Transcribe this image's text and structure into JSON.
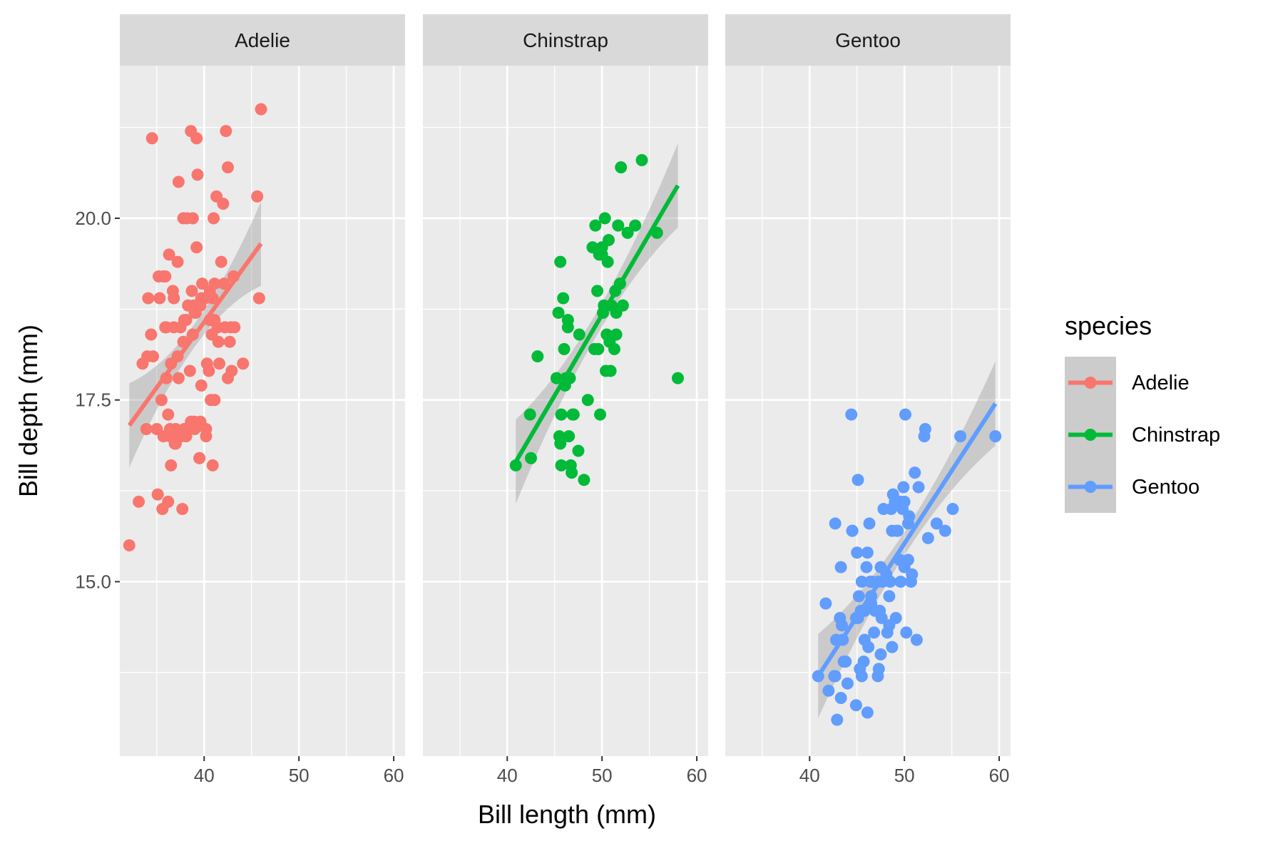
{
  "chart_data": {
    "type": "scatter",
    "facet_by": "species",
    "panels": [
      "Adelie",
      "Chinstrap",
      "Gentoo"
    ],
    "xlabel": "Bill length (mm)",
    "ylabel": "Bill depth (mm)",
    "xlim": [
      31.1,
      61.2
    ],
    "ylim": [
      12.6,
      22.1
    ],
    "xticks": [
      40,
      50,
      60
    ],
    "xtick_labels": [
      "40",
      "50",
      "60"
    ],
    "yticks": [
      15.0,
      17.5,
      20.0
    ],
    "ytick_labels": [
      "15.0",
      "17.5",
      "20.0"
    ],
    "grid": true,
    "smooth": "lm",
    "legend": {
      "title": "species",
      "position": "right",
      "entries": [
        "Adelie",
        "Chinstrap",
        "Gentoo"
      ]
    },
    "colors": {
      "Adelie": "#F8766D",
      "Chinstrap": "#00BA38",
      "Gentoo": "#619CFF"
    },
    "series": [
      {
        "name": "Adelie",
        "fit": {
          "x": [
            32.1,
            46.0
          ],
          "y": [
            17.15,
            19.65
          ]
        },
        "x": [
          32.1,
          33.1,
          33.5,
          33.9,
          34.0,
          34.4,
          34.5,
          34.6,
          35.0,
          35.1,
          35.2,
          35.3,
          35.5,
          35.6,
          35.7,
          35.9,
          36.0,
          36.0,
          36.2,
          36.2,
          36.3,
          36.4,
          36.5,
          36.5,
          36.6,
          36.7,
          36.8,
          36.9,
          37.0,
          37.0,
          37.2,
          37.3,
          37.3,
          37.5,
          37.6,
          37.7,
          37.8,
          37.8,
          37.9,
          37.9,
          38.1,
          38.1,
          38.2,
          38.3,
          38.5,
          38.6,
          38.6,
          38.7,
          38.8,
          38.8,
          38.9,
          39.0,
          39.0,
          39.1,
          39.2,
          39.2,
          39.3,
          39.5,
          39.6,
          39.6,
          39.7,
          39.7,
          39.8,
          40.1,
          40.2,
          40.2,
          40.3,
          40.5,
          40.6,
          40.6,
          40.7,
          40.8,
          40.9,
          40.9,
          41.0,
          41.1,
          41.1,
          41.3,
          41.4,
          41.5,
          41.6,
          41.8,
          42.0,
          42.1,
          42.2,
          42.3,
          42.5,
          42.7,
          42.8,
          42.9,
          43.1,
          43.2,
          44.1,
          45.6,
          45.8,
          46.0,
          34.1,
          35.7,
          36.4,
          37.2,
          39.5,
          40.6,
          36.8,
          38.8,
          39.0,
          41.1,
          42.5,
          35.9
        ],
        "y": [
          15.5,
          16.1,
          18.0,
          17.1,
          18.1,
          18.4,
          21.1,
          18.1,
          17.1,
          16.2,
          19.2,
          18.9,
          17.5,
          16.0,
          17.0,
          19.2,
          18.5,
          17.8,
          17.3,
          16.1,
          19.5,
          17.1,
          16.6,
          18.0,
          17.0,
          19.0,
          18.5,
          16.9,
          17.1,
          16.9,
          18.1,
          20.5,
          17.8,
          18.5,
          17.0,
          16.0,
          18.3,
          20.0,
          18.6,
          17.1,
          18.6,
          17.0,
          20.0,
          18.8,
          17.9,
          21.2,
          17.2,
          19.0,
          20.0,
          17.2,
          18.8,
          17.1,
          18.7,
          18.7,
          21.1,
          19.6,
          20.6,
          16.7,
          17.2,
          18.8,
          17.7,
          18.9,
          19.1,
          18.9,
          17.0,
          17.1,
          18.0,
          17.9,
          18.6,
          19.0,
          17.5,
          18.4,
          16.6,
          18.9,
          20.0,
          19.1,
          17.5,
          20.3,
          18.5,
          18.3,
          18.0,
          19.4,
          20.2,
          19.1,
          18.5,
          21.2,
          20.7,
          18.3,
          18.5,
          17.9,
          19.2,
          18.5,
          18.0,
          20.3,
          18.9,
          21.5,
          18.9,
          19.2,
          17.0,
          19.4,
          16.7,
          18.6,
          18.9,
          18.4,
          17.2,
          18.6,
          17.8,
          18.5
        ]
      },
      {
        "name": "Chinstrap",
        "fit": {
          "x": [
            40.9,
            58.0
          ],
          "y": [
            16.65,
            20.45
          ]
        },
        "x": [
          40.9,
          42.4,
          42.5,
          43.2,
          45.2,
          45.4,
          45.5,
          45.6,
          45.7,
          45.7,
          45.9,
          46.0,
          46.1,
          46.2,
          46.4,
          46.5,
          46.6,
          46.7,
          46.8,
          46.9,
          47.0,
          47.5,
          48.1,
          48.5,
          49.0,
          49.2,
          49.3,
          49.5,
          49.6,
          49.7,
          49.8,
          50.0,
          50.1,
          50.2,
          50.3,
          50.5,
          50.6,
          50.7,
          50.8,
          50.9,
          51.0,
          51.3,
          51.4,
          51.5,
          51.7,
          51.9,
          52.0,
          52.2,
          52.7,
          53.5,
          54.2,
          55.8,
          58.0,
          51.5,
          50.4,
          46.4,
          47.6,
          45.6,
          50.0
        ],
        "y": [
          16.6,
          17.3,
          16.7,
          18.1,
          17.8,
          18.7,
          17.0,
          19.4,
          17.3,
          16.6,
          18.9,
          18.2,
          17.7,
          17.8,
          18.6,
          17.0,
          17.8,
          16.6,
          16.5,
          17.3,
          17.3,
          16.8,
          16.4,
          17.5,
          19.6,
          18.2,
          19.9,
          19.0,
          18.2,
          19.5,
          17.3,
          19.5,
          18.7,
          18.8,
          20.0,
          18.4,
          19.4,
          19.7,
          18.3,
          17.9,
          18.8,
          18.2,
          19.0,
          18.7,
          19.9,
          19.1,
          20.7,
          18.8,
          19.8,
          19.9,
          20.8,
          19.8,
          17.8,
          18.4,
          17.9,
          18.5,
          18.4,
          16.9,
          19.6
        ]
      },
      {
        "name": "Gentoo",
        "fit": {
          "x": [
            40.9,
            59.6
          ],
          "y": [
            13.7,
            17.45
          ]
        },
        "x": [
          40.9,
          41.7,
          42.0,
          42.6,
          42.7,
          42.8,
          42.9,
          43.2,
          43.3,
          43.4,
          43.5,
          43.6,
          43.8,
          44.0,
          44.4,
          44.5,
          44.9,
          45.0,
          45.1,
          45.2,
          45.3,
          45.4,
          45.5,
          45.5,
          45.7,
          45.8,
          46.1,
          46.2,
          46.3,
          46.4,
          46.5,
          46.6,
          46.8,
          46.9,
          47.2,
          47.3,
          47.4,
          47.5,
          47.6,
          47.7,
          47.8,
          48.1,
          48.2,
          48.4,
          48.5,
          48.6,
          48.7,
          48.8,
          49.0,
          49.1,
          49.2,
          49.3,
          49.5,
          49.6,
          49.8,
          49.9,
          50.0,
          50.1,
          50.2,
          50.4,
          50.5,
          50.7,
          50.8,
          51.1,
          51.3,
          51.5,
          52.1,
          52.2,
          52.5,
          53.4,
          54.3,
          55.1,
          55.9,
          59.6,
          44.5,
          47.2,
          45.1,
          48.7,
          46.0,
          49.5,
          43.3,
          46.5,
          47.5,
          50.0,
          42.7,
          45.8,
          48.4,
          44.9,
          46.1,
          50.4
        ],
        "y": [
          13.7,
          14.7,
          13.5,
          13.7,
          13.7,
          14.2,
          13.1,
          14.5,
          13.4,
          14.4,
          14.2,
          13.9,
          13.9,
          13.6,
          17.3,
          15.7,
          13.3,
          15.4,
          14.5,
          14.8,
          13.8,
          14.6,
          13.7,
          15.0,
          13.9,
          14.2,
          13.2,
          14.1,
          15.8,
          15.0,
          14.8,
          15.0,
          14.3,
          14.6,
          15.0,
          13.8,
          14.6,
          14.0,
          14.5,
          15.0,
          16.0,
          15.1,
          14.3,
          14.4,
          15.0,
          16.0,
          14.1,
          16.2,
          16.1,
          14.5,
          15.7,
          15.7,
          16.1,
          15.0,
          16.0,
          16.3,
          16.1,
          17.3,
          14.3,
          15.3,
          15.9,
          15.0,
          15.1,
          16.5,
          14.2,
          16.3,
          17.0,
          17.1,
          15.6,
          15.8,
          15.7,
          16.0,
          17.0,
          17.0,
          15.7,
          13.7,
          16.4,
          15.7,
          15.2,
          15.3,
          15.2,
          14.7,
          15.2,
          15.2,
          15.8,
          14.6,
          14.8,
          14.5,
          15.4,
          15.8
        ]
      }
    ]
  }
}
